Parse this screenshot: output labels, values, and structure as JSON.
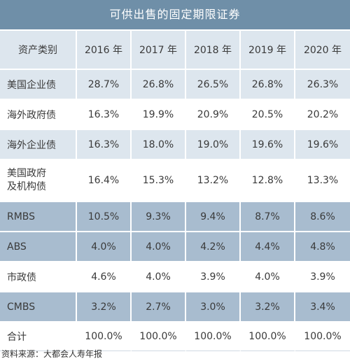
{
  "title": "可供出售的固定期限证券",
  "columns": [
    "资产类别",
    "2016 年",
    "2017 年",
    "2018 年",
    "2019 年",
    "2020 年"
  ],
  "rows": [
    {
      "label": "美国企业债",
      "values": [
        "28.7%",
        "26.8%",
        "26.5%",
        "26.8%",
        "26.3%"
      ]
    },
    {
      "label": "海外政府债",
      "values": [
        "16.3%",
        "19.9%",
        "20.9%",
        "20.5%",
        "20.2%"
      ]
    },
    {
      "label": "海外企业债",
      "values": [
        "16.3%",
        "18.0%",
        "19.0%",
        "19.6%",
        "19.6%"
      ]
    },
    {
      "label_line1": "美国政府",
      "label_line2": "及机构债",
      "values": [
        "16.4%",
        "15.3%",
        "13.2%",
        "12.8%",
        "13.3%"
      ]
    },
    {
      "label": "RMBS",
      "values": [
        "10.5%",
        "9.3%",
        "9.4%",
        "8.7%",
        "8.6%"
      ]
    },
    {
      "label": "ABS",
      "values": [
        "4.0%",
        "4.0%",
        "4.2%",
        "4.4%",
        "4.8%"
      ]
    },
    {
      "label": "市政债",
      "values": [
        "4.6%",
        "4.0%",
        "3.9%",
        "4.0%",
        "3.9%"
      ]
    },
    {
      "label": "CMBS",
      "values": [
        "3.2%",
        "2.7%",
        "3.0%",
        "3.2%",
        "3.4%"
      ]
    },
    {
      "label": "合计",
      "values": [
        "100.0%",
        "100.0%",
        "100.0%",
        "100.0%",
        "100.0%"
      ]
    }
  ],
  "source": "资料来源：大都会人寿年报",
  "colors": {
    "title_bg": "#6f8fa8",
    "row_light": "#dde6ee",
    "row_dark": "#a8bccf",
    "row_white": "#ffffff"
  }
}
